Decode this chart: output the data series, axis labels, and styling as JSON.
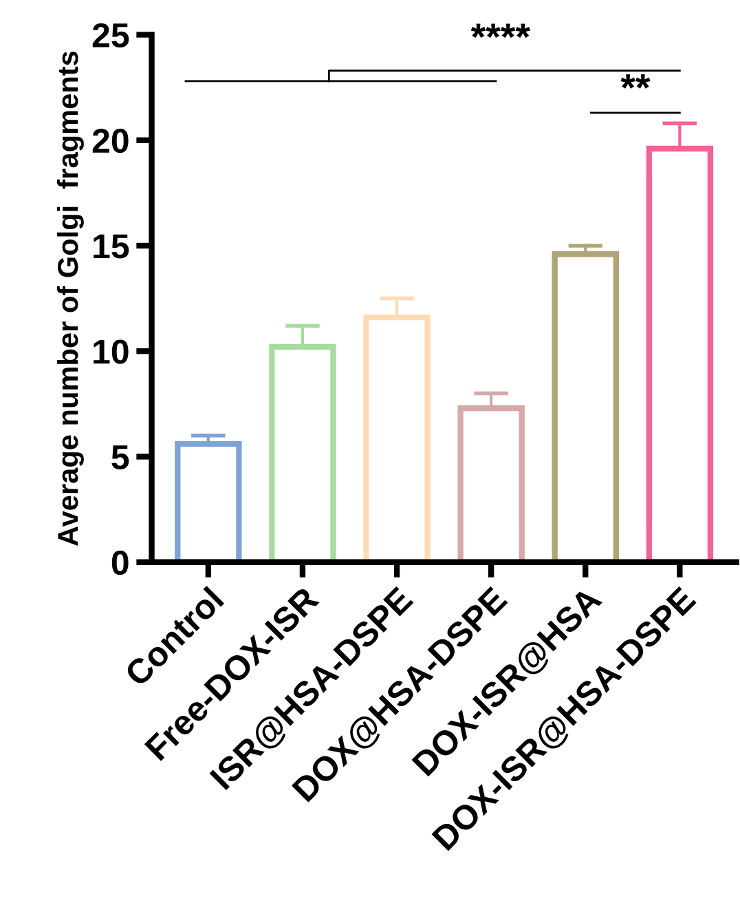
{
  "chart_data": {
    "type": "bar",
    "ylabel": "Average number of Golgi  fragments",
    "categories": [
      "Control",
      "Free-DOX-ISR",
      "ISR@HSA-DSPE",
      "DOX@HSA-DSPE",
      "DOX-ISR@HSA",
      "DOX-ISR@HSA-DSPE"
    ],
    "values": [
      5.6,
      10.2,
      11.6,
      7.3,
      14.6,
      19.6
    ],
    "errors": [
      0.4,
      1.0,
      0.9,
      0.7,
      0.4,
      1.2
    ],
    "colors": [
      "#7fa3d4",
      "#a7dba0",
      "#fddcb5",
      "#d5a9a9",
      "#b2a575",
      "#f26396"
    ],
    "ylim": [
      0,
      25
    ],
    "yticks": [
      0,
      5,
      10,
      15,
      20,
      25
    ],
    "grid": false,
    "legend": false,
    "annotations": [
      "****",
      "**"
    ]
  }
}
